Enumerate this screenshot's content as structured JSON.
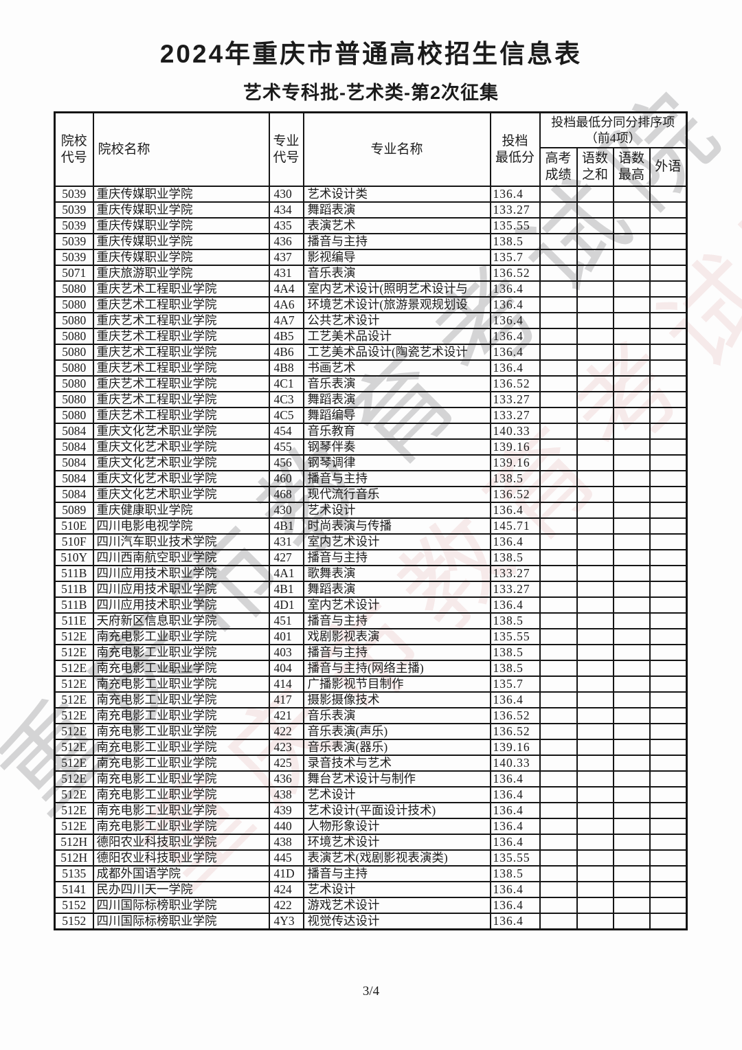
{
  "page": {
    "title": "2024年重庆市普通高校招生信息表",
    "subtitle": "艺术专科批-艺术类-第2次征集",
    "watermark": "重庆市教育考试院",
    "page_number": "3/4"
  },
  "table": {
    "headers": {
      "college_code": "院校\n代号",
      "college_name": "院校名称",
      "major_code": "专业\n代号",
      "major_name": "专业名称",
      "min_score": "投档\n最低分",
      "tie_break_group": "投档最低分同分排序项\n（前4项）",
      "gaokao_score": "高考\n成绩",
      "chinese_math_sum": "语数\n之和",
      "chinese_math_max": "语数\n最高",
      "foreign_language": "外语"
    },
    "rows": [
      [
        "5039",
        "重庆传媒职业学院",
        "430",
        "艺术设计类",
        "136.4",
        "",
        "",
        "",
        ""
      ],
      [
        "5039",
        "重庆传媒职业学院",
        "434",
        "舞蹈表演",
        "133.27",
        "",
        "",
        "",
        ""
      ],
      [
        "5039",
        "重庆传媒职业学院",
        "435",
        "表演艺术",
        "135.55",
        "",
        "",
        "",
        ""
      ],
      [
        "5039",
        "重庆传媒职业学院",
        "436",
        "播音与主持",
        "138.5",
        "",
        "",
        "",
        ""
      ],
      [
        "5039",
        "重庆传媒职业学院",
        "437",
        "影视编导",
        "135.7",
        "",
        "",
        "",
        ""
      ],
      [
        "5071",
        "重庆旅游职业学院",
        "431",
        "音乐表演",
        "136.52",
        "",
        "",
        "",
        ""
      ],
      [
        "5080",
        "重庆艺术工程职业学院",
        "4A4",
        "室内艺术设计(照明艺术设计与",
        "136.4",
        "",
        "",
        "",
        ""
      ],
      [
        "5080",
        "重庆艺术工程职业学院",
        "4A6",
        "环境艺术设计(旅游景观规划设",
        "136.4",
        "",
        "",
        "",
        ""
      ],
      [
        "5080",
        "重庆艺术工程职业学院",
        "4A7",
        "公共艺术设计",
        "136.4",
        "",
        "",
        "",
        ""
      ],
      [
        "5080",
        "重庆艺术工程职业学院",
        "4B5",
        "工艺美术品设计",
        "136.4",
        "",
        "",
        "",
        ""
      ],
      [
        "5080",
        "重庆艺术工程职业学院",
        "4B6",
        "工艺美术品设计(陶瓷艺术设计",
        "136.4",
        "",
        "",
        "",
        ""
      ],
      [
        "5080",
        "重庆艺术工程职业学院",
        "4B8",
        "书画艺术",
        "136.4",
        "",
        "",
        "",
        ""
      ],
      [
        "5080",
        "重庆艺术工程职业学院",
        "4C1",
        "音乐表演",
        "136.52",
        "",
        "",
        "",
        ""
      ],
      [
        "5080",
        "重庆艺术工程职业学院",
        "4C3",
        "舞蹈表演",
        "133.27",
        "",
        "",
        "",
        ""
      ],
      [
        "5080",
        "重庆艺术工程职业学院",
        "4C5",
        "舞蹈编导",
        "133.27",
        "",
        "",
        "",
        ""
      ],
      [
        "5084",
        "重庆文化艺术职业学院",
        "454",
        "音乐教育",
        "140.33",
        "",
        "",
        "",
        ""
      ],
      [
        "5084",
        "重庆文化艺术职业学院",
        "455",
        "钢琴伴奏",
        "139.16",
        "",
        "",
        "",
        ""
      ],
      [
        "5084",
        "重庆文化艺术职业学院",
        "456",
        "钢琴调律",
        "139.16",
        "",
        "",
        "",
        ""
      ],
      [
        "5084",
        "重庆文化艺术职业学院",
        "460",
        "播音与主持",
        "138.5",
        "",
        "",
        "",
        ""
      ],
      [
        "5084",
        "重庆文化艺术职业学院",
        "468",
        "现代流行音乐",
        "136.52",
        "",
        "",
        "",
        ""
      ],
      [
        "5089",
        "重庆健康职业学院",
        "430",
        "艺术设计",
        "136.4",
        "",
        "",
        "",
        ""
      ],
      [
        "510E",
        "四川电影电视学院",
        "4B1",
        "时尚表演与传播",
        "145.71",
        "",
        "",
        "",
        ""
      ],
      [
        "510F",
        "四川汽车职业技术学院",
        "431",
        "室内艺术设计",
        "136.4",
        "",
        "",
        "",
        ""
      ],
      [
        "510Y",
        "四川西南航空职业学院",
        "427",
        "播音与主持",
        "138.5",
        "",
        "",
        "",
        ""
      ],
      [
        "511B",
        "四川应用技术职业学院",
        "4A1",
        "歌舞表演",
        "133.27",
        "",
        "",
        "",
        ""
      ],
      [
        "511B",
        "四川应用技术职业学院",
        "4B1",
        "舞蹈表演",
        "133.27",
        "",
        "",
        "",
        ""
      ],
      [
        "511B",
        "四川应用技术职业学院",
        "4D1",
        "室内艺术设计",
        "136.4",
        "",
        "",
        "",
        ""
      ],
      [
        "511E",
        "天府新区信息职业学院",
        "451",
        "播音与主持",
        "138.5",
        "",
        "",
        "",
        ""
      ],
      [
        "512E",
        "南充电影工业职业学院",
        "401",
        "戏剧影视表演",
        "135.55",
        "",
        "",
        "",
        ""
      ],
      [
        "512E",
        "南充电影工业职业学院",
        "403",
        "播音与主持",
        "138.5",
        "",
        "",
        "",
        ""
      ],
      [
        "512E",
        "南充电影工业职业学院",
        "404",
        "播音与主持(网络主播)",
        "138.5",
        "",
        "",
        "",
        ""
      ],
      [
        "512E",
        "南充电影工业职业学院",
        "414",
        "广播影视节目制作",
        "135.7",
        "",
        "",
        "",
        ""
      ],
      [
        "512E",
        "南充电影工业职业学院",
        "417",
        "摄影摄像技术",
        "136.4",
        "",
        "",
        "",
        ""
      ],
      [
        "512E",
        "南充电影工业职业学院",
        "421",
        "音乐表演",
        "136.52",
        "",
        "",
        "",
        ""
      ],
      [
        "512E",
        "南充电影工业职业学院",
        "422",
        "音乐表演(声乐)",
        "136.52",
        "",
        "",
        "",
        ""
      ],
      [
        "512E",
        "南充电影工业职业学院",
        "423",
        "音乐表演(器乐)",
        "139.16",
        "",
        "",
        "",
        ""
      ],
      [
        "512E",
        "南充电影工业职业学院",
        "425",
        "录音技术与艺术",
        "140.33",
        "",
        "",
        "",
        ""
      ],
      [
        "512E",
        "南充电影工业职业学院",
        "436",
        "舞台艺术设计与制作",
        "136.4",
        "",
        "",
        "",
        ""
      ],
      [
        "512E",
        "南充电影工业职业学院",
        "438",
        "艺术设计",
        "136.4",
        "",
        "",
        "",
        ""
      ],
      [
        "512E",
        "南充电影工业职业学院",
        "439",
        "艺术设计(平面设计技术)",
        "136.4",
        "",
        "",
        "",
        ""
      ],
      [
        "512E",
        "南充电影工业职业学院",
        "440",
        "人物形象设计",
        "136.4",
        "",
        "",
        "",
        ""
      ],
      [
        "512H",
        "德阳农业科技职业学院",
        "438",
        "环境艺术设计",
        "136.4",
        "",
        "",
        "",
        ""
      ],
      [
        "512H",
        "德阳农业科技职业学院",
        "445",
        "表演艺术(戏剧影视表演类)",
        "135.55",
        "",
        "",
        "",
        ""
      ],
      [
        "5135",
        "成都外国语学院",
        "41D",
        "播音与主持",
        "138.5",
        "",
        "",
        "",
        ""
      ],
      [
        "5141",
        "民办四川天一学院",
        "424",
        "艺术设计",
        "136.4",
        "",
        "",
        "",
        ""
      ],
      [
        "5152",
        "四川国际标榜职业学院",
        "422",
        "游戏艺术设计",
        "136.4",
        "",
        "",
        "",
        ""
      ],
      [
        "5152",
        "四川国际标榜职业学院",
        "4Y3",
        "视觉传达设计",
        "136.4",
        "",
        "",
        "",
        ""
      ]
    ]
  }
}
